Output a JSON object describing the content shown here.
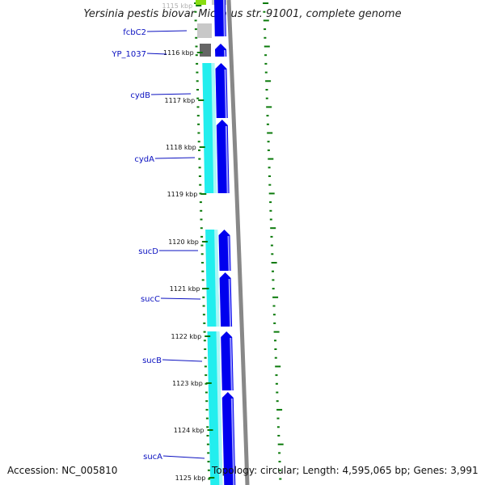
{
  "title": "Yersinia pestis biovar Microtus str. 91001, complete genome",
  "accession": "Accession: NC_005810",
  "summary": "Topology: circular; Length: 4,595,065 bp; Genes: 3,991",
  "colors": {
    "gene_strand": "#0000ee",
    "cds_strand": "#22eeee",
    "backbone": "#888888",
    "gc_ticks": "#0a7a0a",
    "label": "#0a10c0",
    "other_feature": "#666666",
    "pale_feature": "#c8c8c8",
    "rna_feature": "#88dd11"
  },
  "ticks": [
    {
      "label": "1115 kbp"
    },
    {
      "label": "1116 kbp"
    },
    {
      "label": "1117 kbp"
    },
    {
      "label": "1118 kbp"
    },
    {
      "label": "1119 kbp"
    },
    {
      "label": "1120 kbp"
    },
    {
      "label": "1121 kbp"
    },
    {
      "label": "1122 kbp"
    },
    {
      "label": "1123 kbp"
    },
    {
      "label": "1124 kbp"
    },
    {
      "label": "1125 kbp"
    }
  ],
  "genes": [
    {
      "name": "fcbC2"
    },
    {
      "name": "YP_1037"
    },
    {
      "name": "cydB"
    },
    {
      "name": "cydA"
    },
    {
      "name": "sucD"
    },
    {
      "name": "sucC"
    },
    {
      "name": "sucB"
    },
    {
      "name": "sucA"
    }
  ]
}
